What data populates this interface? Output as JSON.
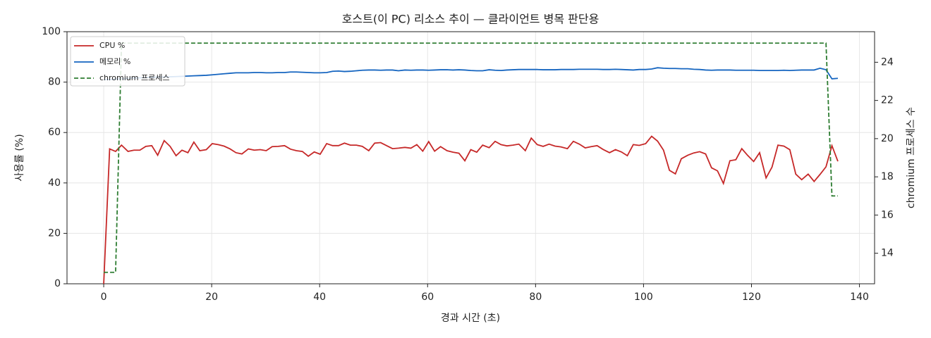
{
  "chart_data": {
    "type": "line",
    "title": "호스트(이 PC) 리소스 추이 — 클라이언트 병목 판단용",
    "x_label": "경과 시간 (초)",
    "y_label": "사용률 (%)",
    "y2_label": "chromium 프로세스 수",
    "x": [
      0,
      1.1,
      2.2,
      3.3,
      4.5,
      5.6,
      6.7,
      7.8,
      8.9,
      10.0,
      11.2,
      12.3,
      13.4,
      14.5,
      15.6,
      16.7,
      17.8,
      19.0,
      20.1,
      21.2,
      22.3,
      23.4,
      24.5,
      25.6,
      26.8,
      27.9,
      29.0,
      30.1,
      31.2,
      32.3,
      33.5,
      34.6,
      35.7,
      36.8,
      37.9,
      39.0,
      40.1,
      41.3,
      42.4,
      43.5,
      44.6,
      45.7,
      46.8,
      47.9,
      49.1,
      50.2,
      51.3,
      52.4,
      53.5,
      54.6,
      55.8,
      56.9,
      58.0,
      59.1,
      60.2,
      61.3,
      62.4,
      63.6,
      64.7,
      65.8,
      66.9,
      68.0,
      69.1,
      70.2,
      71.4,
      72.5,
      73.6,
      74.7,
      75.8,
      76.9,
      78.1,
      79.2,
      80.3,
      81.4,
      82.5,
      83.6,
      84.7,
      85.9,
      87.0,
      88.1,
      89.2,
      90.3,
      91.4,
      92.5,
      93.7,
      94.8,
      95.9,
      97.0,
      98.1,
      99.2,
      100.4,
      101.5,
      102.6,
      103.7,
      104.8,
      105.9,
      107.0,
      108.2,
      109.3,
      110.4,
      111.5,
      112.6,
      113.7,
      114.8,
      116.0,
      117.1,
      118.2,
      119.3,
      120.4,
      121.5,
      122.7,
      123.8,
      124.9,
      126.0,
      127.1,
      128.2,
      129.3,
      130.5,
      131.6,
      132.7,
      133.8,
      134.9,
      136.0
    ],
    "series": [
      {
        "name": "CPU %",
        "color": "#c62828",
        "axis": "y",
        "linestyle": "solid",
        "values": [
          0,
          53.5,
          52.5,
          55,
          52.5,
          53,
          53,
          54.5,
          54.8,
          51,
          56.8,
          54.5,
          50.8,
          53,
          52,
          56.2,
          52.8,
          53.2,
          55.6,
          55.2,
          54.6,
          53.5,
          52,
          51.5,
          53.5,
          53,
          53.2,
          52.8,
          54.4,
          54.5,
          54.8,
          53.4,
          52.8,
          52.5,
          50.6,
          52.3,
          51.4,
          55.6,
          54.8,
          54.8,
          55.8,
          55,
          55,
          54.5,
          52.8,
          55.8,
          56,
          54.8,
          53.6,
          53.8,
          54.1,
          53.8,
          55.2,
          52.6,
          56.4,
          52.6,
          54.4,
          52.8,
          52.2,
          51.8,
          48.8,
          53.2,
          52.2,
          55,
          54,
          56.5,
          55.2,
          54.7,
          55,
          55.4,
          52.8,
          57.8,
          55.2,
          54.5,
          55.4,
          54.6,
          54.3,
          53.6,
          56.5,
          55.4,
          53.9,
          54.4,
          54.8,
          53.3,
          52,
          53.2,
          52.3,
          50.8,
          55.2,
          54.9,
          55.6,
          58.5,
          56.6,
          53,
          45,
          43.6,
          49.6,
          51,
          51.9,
          52.4,
          51.5,
          46,
          44.8,
          39.8,
          48.8,
          49.2,
          53.6,
          50.9,
          48.5,
          52,
          42,
          46.3,
          55,
          54.6,
          53.2,
          43.5,
          41.3,
          43.5,
          40.6,
          43.4,
          46.4,
          54.8,
          48.6
        ]
      },
      {
        "name": "메모리 %",
        "color": "#1565c0",
        "axis": "y",
        "linestyle": "solid",
        "values": [
          81,
          81,
          81.2,
          81.3,
          81.5,
          81.6,
          81.7,
          81.8,
          81.9,
          82,
          82,
          82.1,
          82.2,
          82.3,
          82.4,
          82.5,
          82.6,
          82.7,
          82.9,
          83.1,
          83.3,
          83.5,
          83.7,
          83.7,
          83.7,
          83.8,
          83.8,
          83.7,
          83.7,
          83.8,
          83.8,
          84,
          84,
          83.9,
          83.8,
          83.7,
          83.7,
          83.8,
          84.3,
          84.4,
          84.2,
          84.3,
          84.5,
          84.7,
          84.8,
          84.8,
          84.7,
          84.8,
          84.8,
          84.5,
          84.8,
          84.7,
          84.8,
          84.8,
          84.7,
          84.8,
          84.9,
          84.9,
          84.8,
          84.9,
          84.8,
          84.6,
          84.5,
          84.5,
          84.9,
          84.7,
          84.6,
          84.8,
          84.9,
          85,
          85,
          85,
          85,
          84.9,
          84.9,
          84.9,
          85,
          85,
          85,
          85.1,
          85.1,
          85.1,
          85.1,
          85,
          85,
          85.1,
          85,
          84.9,
          84.8,
          85,
          85,
          85.2,
          85.7,
          85.5,
          85.4,
          85.4,
          85.3,
          85.3,
          85.1,
          85,
          84.8,
          84.7,
          84.8,
          84.8,
          84.8,
          84.7,
          84.7,
          84.7,
          84.7,
          84.6,
          84.6,
          84.6,
          84.6,
          84.7,
          84.6,
          84.7,
          84.8,
          84.8,
          84.8,
          85.5,
          84.9,
          81.3,
          81.5
        ]
      },
      {
        "name": "chromium 프로세스",
        "color": "#2e7d32",
        "axis": "y2",
        "linestyle": "dashed",
        "values": [
          13,
          13,
          13,
          25,
          25,
          25,
          25,
          25,
          25,
          25,
          25,
          25,
          25,
          25,
          25,
          25,
          25,
          25,
          25,
          25,
          25,
          25,
          25,
          25,
          25,
          25,
          25,
          25,
          25,
          25,
          25,
          25,
          25,
          25,
          25,
          25,
          25,
          25,
          25,
          25,
          25,
          25,
          25,
          25,
          25,
          25,
          25,
          25,
          25,
          25,
          25,
          25,
          25,
          25,
          25,
          25,
          25,
          25,
          25,
          25,
          25,
          25,
          25,
          25,
          25,
          25,
          25,
          25,
          25,
          25,
          25,
          25,
          25,
          25,
          25,
          25,
          25,
          25,
          25,
          25,
          25,
          25,
          25,
          25,
          25,
          25,
          25,
          25,
          25,
          25,
          25,
          25,
          25,
          25,
          25,
          25,
          25,
          25,
          25,
          25,
          25,
          25,
          25,
          25,
          25,
          25,
          25,
          25,
          25,
          25,
          25,
          25,
          25,
          25,
          25,
          25,
          25,
          25,
          25,
          25,
          25,
          17,
          17
        ]
      }
    ],
    "xlim": [
      -6.8,
      142.8
    ],
    "xticks": [
      0,
      20,
      40,
      60,
      80,
      100,
      120,
      140
    ],
    "ylim": [
      0,
      100
    ],
    "yticks": [
      0,
      20,
      40,
      60,
      80,
      100
    ],
    "y2lim": [
      12.4,
      25.6
    ],
    "y2ticks": [
      14,
      16,
      18,
      20,
      22,
      24
    ],
    "grid": true,
    "legend": "upper-left"
  }
}
